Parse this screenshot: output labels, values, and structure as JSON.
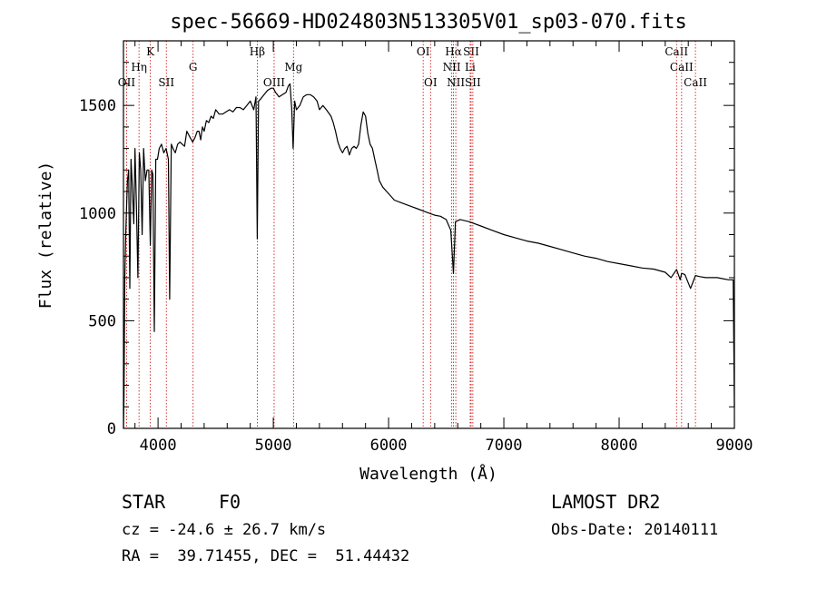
{
  "chart_data": {
    "type": "line",
    "title": "spec-56669-HD024803N513305V01_sp03-070.fits",
    "xlabel": "Wavelength (Å)",
    "ylabel": "Flux (relative)",
    "xlim": [
      3700,
      9000
    ],
    "ylim": [
      0,
      1800
    ],
    "x_ticks": [
      4000,
      5000,
      6000,
      7000,
      8000,
      9000
    ],
    "y_ticks": [
      0,
      500,
      1000,
      1500
    ],
    "grid": false,
    "series": [
      {
        "values_x": [
          3700,
          3705,
          3712,
          3720,
          3728,
          3735,
          3745,
          3755,
          3765,
          3775,
          3790,
          3800,
          3812,
          3825,
          3838,
          3850,
          3862,
          3875,
          3890,
          3905,
          3920,
          3933,
          3945,
          3955,
          3968,
          3980,
          3995,
          4010,
          4030,
          4050,
          4070,
          4090,
          4101,
          4115,
          4130,
          4150,
          4170,
          4190,
          4210,
          4230,
          4250,
          4280,
          4300,
          4320,
          4340,
          4355,
          4370,
          4385,
          4400,
          4420,
          4440,
          4460,
          4480,
          4500,
          4530,
          4560,
          4590,
          4620,
          4650,
          4680,
          4710,
          4740,
          4770,
          4800,
          4830,
          4850,
          4861,
          4872,
          4890,
          4920,
          4950,
          4980,
          5000,
          5020,
          5050,
          5080,
          5110,
          5130,
          5145,
          5160,
          5172,
          5185,
          5200,
          5230,
          5260,
          5290,
          5320,
          5350,
          5380,
          5400,
          5430,
          5460,
          5500,
          5520,
          5540,
          5560,
          5580,
          5600,
          5620,
          5640,
          5660,
          5680,
          5700,
          5720,
          5740,
          5760,
          5780,
          5800,
          5820,
          5840,
          5860,
          5880,
          5900,
          5920,
          5950,
          6000,
          6050,
          6100,
          6150,
          6200,
          6250,
          6300,
          6350,
          6400,
          6450,
          6500,
          6540,
          6563,
          6580,
          6620,
          6700,
          6800,
          6900,
          7000,
          7100,
          7200,
          7300,
          7400,
          7500,
          7600,
          7700,
          7800,
          7900,
          8000,
          8100,
          8200,
          8300,
          8400,
          8450,
          8498,
          8530,
          8542,
          8570,
          8620,
          8662,
          8700,
          8750,
          8800,
          8850,
          8900,
          8950,
          8990,
          9000
        ],
        "values_y": [
          0,
          150,
          700,
          900,
          1050,
          1150,
          1200,
          650,
          1250,
          1150,
          950,
          1300,
          1050,
          700,
          1280,
          1200,
          900,
          1300,
          1150,
          1200,
          1200,
          850,
          1200,
          1180,
          450,
          1250,
          1250,
          1300,
          1320,
          1280,
          1300,
          1250,
          600,
          1320,
          1300,
          1280,
          1320,
          1330,
          1320,
          1310,
          1380,
          1350,
          1330,
          1350,
          1380,
          1380,
          1340,
          1400,
          1380,
          1430,
          1420,
          1450,
          1440,
          1480,
          1460,
          1460,
          1470,
          1480,
          1470,
          1490,
          1490,
          1480,
          1500,
          1520,
          1480,
          1540,
          880,
          1520,
          1530,
          1550,
          1570,
          1580,
          1580,
          1560,
          1540,
          1550,
          1560,
          1590,
          1600,
          1480,
          1300,
          1520,
          1480,
          1500,
          1540,
          1550,
          1550,
          1540,
          1520,
          1480,
          1500,
          1480,
          1450,
          1420,
          1380,
          1330,
          1300,
          1280,
          1300,
          1310,
          1270,
          1300,
          1310,
          1300,
          1320,
          1410,
          1470,
          1450,
          1370,
          1320,
          1300,
          1250,
          1200,
          1150,
          1120,
          1090,
          1060,
          1050,
          1040,
          1030,
          1020,
          1010,
          1000,
          990,
          985,
          970,
          920,
          720,
          960,
          970,
          960,
          940,
          920,
          900,
          885,
          870,
          860,
          845,
          830,
          815,
          800,
          790,
          775,
          765,
          755,
          745,
          740,
          725,
          700,
          738,
          690,
          720,
          715,
          650,
          710,
          705,
          700,
          700,
          700,
          695,
          690,
          690,
          100
        ]
      }
    ],
    "line_markers": [
      {
        "label": "OII",
        "x": 3727,
        "row": 3
      },
      {
        "label": "Hη",
        "x": 3835,
        "row": 2
      },
      {
        "label": "K",
        "x": 3933,
        "row": 1
      },
      {
        "label": "SII",
        "x": 4072,
        "row": 3
      },
      {
        "label": "G",
        "x": 4304,
        "row": 2
      },
      {
        "label": "Hβ",
        "x": 4861,
        "row": 1
      },
      {
        "label": "OIII",
        "x": 5007,
        "row": 3
      },
      {
        "label": "Mg",
        "x": 5175,
        "row": 2
      },
      {
        "label": "OI",
        "x": 6300,
        "row": 1
      },
      {
        "label": "OI",
        "x": 6364,
        "row": 3
      },
      {
        "label": "Hα",
        "x": 6563,
        "row": 1
      },
      {
        "label": "NII",
        "x": 6548,
        "row": 2
      },
      {
        "label": "NII",
        "x": 6583,
        "row": 3
      },
      {
        "label": "SII",
        "x": 6716,
        "row": 1
      },
      {
        "label": "Li",
        "x": 6708,
        "row": 2
      },
      {
        "label": "SII",
        "x": 6731,
        "row": 3
      },
      {
        "label": "CaII",
        "x": 8498,
        "row": 1
      },
      {
        "label": "CaII",
        "x": 8542,
        "row": 2
      },
      {
        "label": "CaII",
        "x": 8662,
        "row": 3
      }
    ]
  },
  "info": {
    "object_class": "STAR",
    "subclass": "F0",
    "redshift_line": "cz = -24.6 ± 26.7 km/s",
    "coords_line": "RA =  39.71455, DEC =  51.44432",
    "survey": "LAMOST DR2",
    "obs_date_line": "Obs-Date: 20140111"
  },
  "colors": {
    "spectrum": "#000000",
    "marker_line": "#cc0000",
    "axis": "#000000"
  }
}
